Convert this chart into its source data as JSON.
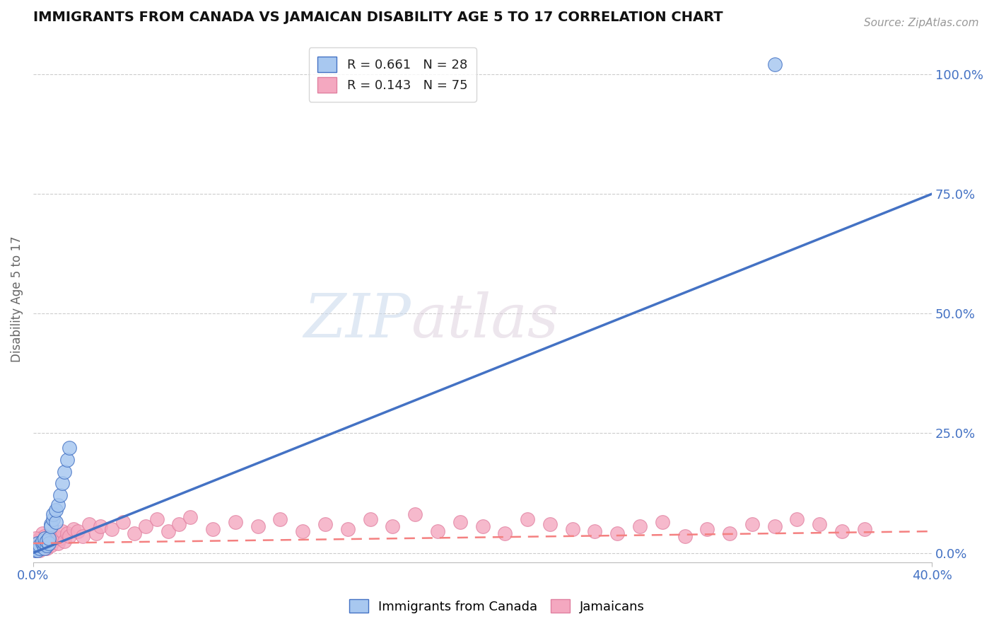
{
  "title": "IMMIGRANTS FROM CANADA VS JAMAICAN DISABILITY AGE 5 TO 17 CORRELATION CHART",
  "source": "Source: ZipAtlas.com",
  "ylabel": "Disability Age 5 to 17",
  "xlim": [
    0.0,
    0.4
  ],
  "ylim": [
    -0.02,
    1.08
  ],
  "xticks": [
    0.0,
    0.4
  ],
  "xticklabels": [
    "0.0%",
    "40.0%"
  ],
  "yticks_right": [
    0.0,
    0.25,
    0.5,
    0.75,
    1.0
  ],
  "ytick_right_labels": [
    "0.0%",
    "25.0%",
    "50.0%",
    "75.0%",
    "100.0%"
  ],
  "legend_r1": "R = 0.661   N = 28",
  "legend_r2": "R = 0.143   N = 75",
  "color_canada": "#A8C8F0",
  "color_jamaica": "#F4A8C0",
  "color_line_canada": "#4472C4",
  "color_line_jamaica": "#F48080",
  "watermark_zip": "ZIP",
  "watermark_atlas": "atlas",
  "blue_line_x": [
    0.0,
    0.4
  ],
  "blue_line_y": [
    0.0,
    0.75
  ],
  "pink_line_x": [
    0.0,
    0.4
  ],
  "pink_line_y": [
    0.02,
    0.045
  ],
  "canada_x": [
    0.001,
    0.001,
    0.002,
    0.002,
    0.003,
    0.003,
    0.004,
    0.004,
    0.005,
    0.005,
    0.005,
    0.006,
    0.006,
    0.007,
    0.007,
    0.008,
    0.008,
    0.009,
    0.009,
    0.01,
    0.01,
    0.011,
    0.012,
    0.013,
    0.014,
    0.015,
    0.016,
    0.33
  ],
  "canada_y": [
    0.005,
    0.01,
    0.005,
    0.02,
    0.01,
    0.015,
    0.02,
    0.025,
    0.01,
    0.02,
    0.03,
    0.015,
    0.025,
    0.02,
    0.03,
    0.06,
    0.055,
    0.07,
    0.08,
    0.065,
    0.09,
    0.1,
    0.12,
    0.145,
    0.17,
    0.195,
    0.22,
    1.02
  ],
  "jamaica_x": [
    0.001,
    0.001,
    0.002,
    0.002,
    0.003,
    0.003,
    0.004,
    0.004,
    0.005,
    0.005,
    0.006,
    0.006,
    0.007,
    0.007,
    0.008,
    0.008,
    0.009,
    0.01,
    0.011,
    0.012,
    0.013,
    0.014,
    0.015,
    0.016,
    0.018,
    0.02,
    0.022,
    0.025,
    0.028,
    0.03,
    0.035,
    0.04,
    0.045,
    0.05,
    0.055,
    0.06,
    0.065,
    0.07,
    0.08,
    0.09,
    0.1,
    0.11,
    0.12,
    0.13,
    0.14,
    0.15,
    0.16,
    0.17,
    0.18,
    0.19,
    0.2,
    0.21,
    0.22,
    0.23,
    0.24,
    0.25,
    0.26,
    0.27,
    0.28,
    0.29,
    0.3,
    0.31,
    0.32,
    0.33,
    0.34,
    0.35,
    0.36,
    0.37,
    0.001,
    0.002,
    0.003,
    0.004,
    0.005,
    0.006,
    0.007
  ],
  "jamaica_y": [
    0.02,
    0.005,
    0.01,
    0.025,
    0.015,
    0.03,
    0.02,
    0.04,
    0.01,
    0.035,
    0.025,
    0.01,
    0.02,
    0.03,
    0.015,
    0.04,
    0.025,
    0.035,
    0.02,
    0.03,
    0.045,
    0.025,
    0.04,
    0.035,
    0.05,
    0.045,
    0.035,
    0.06,
    0.04,
    0.055,
    0.05,
    0.065,
    0.04,
    0.055,
    0.07,
    0.045,
    0.06,
    0.075,
    0.05,
    0.065,
    0.055,
    0.07,
    0.045,
    0.06,
    0.05,
    0.07,
    0.055,
    0.08,
    0.045,
    0.065,
    0.055,
    0.04,
    0.07,
    0.06,
    0.05,
    0.045,
    0.04,
    0.055,
    0.065,
    0.035,
    0.05,
    0.04,
    0.06,
    0.055,
    0.07,
    0.06,
    0.045,
    0.05,
    0.03,
    0.015,
    0.005,
    0.01,
    0.02,
    0.015,
    0.025
  ]
}
